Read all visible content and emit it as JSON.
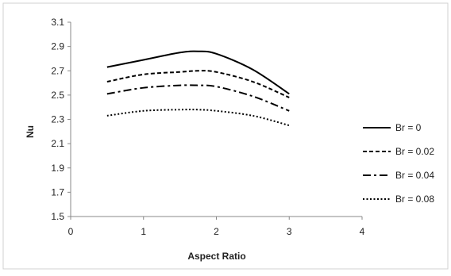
{
  "chart_data": {
    "type": "line",
    "title": "",
    "xlabel": "Aspect Ratio",
    "ylabel": "Nu",
    "xlim": [
      0,
      4
    ],
    "ylim": [
      1.5,
      3.1
    ],
    "xticks": [
      0,
      1,
      2,
      3,
      4
    ],
    "yticks": [
      1.5,
      1.7,
      1.9,
      2.1,
      2.3,
      2.5,
      2.7,
      2.9,
      3.1
    ],
    "xtick_labels": [
      "0",
      "1",
      "2",
      "3",
      "4"
    ],
    "ytick_labels": [
      "1.5",
      "1.7",
      "1.9",
      "2.1",
      "2.3",
      "2.5",
      "2.7",
      "2.9",
      "3.1"
    ],
    "grid": false,
    "legend_position": "right",
    "series": [
      {
        "name": "Br = 0",
        "dash": "solid",
        "x": [
          0.5,
          1,
          1.5,
          1.75,
          2,
          2.5,
          3
        ],
        "y": [
          2.73,
          2.79,
          2.85,
          2.86,
          2.84,
          2.71,
          2.51
        ]
      },
      {
        "name": "Br = 0.02",
        "dash": "dashed",
        "x": [
          0.5,
          1,
          1.5,
          1.75,
          2,
          2.5,
          3
        ],
        "y": [
          2.61,
          2.67,
          2.69,
          2.7,
          2.69,
          2.61,
          2.48
        ]
      },
      {
        "name": "Br = 0.04",
        "dash": "dash-dot",
        "x": [
          0.5,
          1,
          1.5,
          1.75,
          2,
          2.5,
          3
        ],
        "y": [
          2.51,
          2.56,
          2.58,
          2.58,
          2.57,
          2.49,
          2.37
        ]
      },
      {
        "name": "Br = 0.08",
        "dash": "dotted",
        "x": [
          0.5,
          1,
          1.5,
          1.75,
          2,
          2.5,
          3
        ],
        "y": [
          2.33,
          2.37,
          2.38,
          2.38,
          2.37,
          2.33,
          2.25
        ]
      }
    ]
  }
}
